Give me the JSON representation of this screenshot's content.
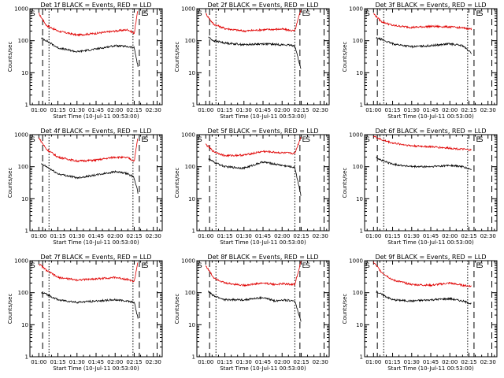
{
  "chart_data": [
    {
      "type": "line",
      "title": "Det 1f BLACK = Events, RED = LLD",
      "xlabel": "Start Time (10-Jul-11 00:53:00)",
      "ylabel": "Counts/sec",
      "yscale": "log",
      "ylim": [
        1,
        1000
      ],
      "xlim": [
        "00:53",
        "02:37"
      ],
      "x_ticks": [
        "01:00",
        "01:15",
        "01:30",
        "01:45",
        "02:00",
        "02:15",
        "02:30"
      ],
      "y_ticks": [
        "1",
        "10",
        "100",
        "1000"
      ],
      "markers": [
        {
          "label": "S",
          "time": "00:53"
        },
        {
          "label": "E",
          "time": "02:20"
        },
        {
          "label": "S",
          "time": "02:22"
        }
      ],
      "dashed_lines": [
        "01:03",
        "02:19",
        "02:33"
      ],
      "dotted_lines": [
        "01:08",
        "02:14"
      ],
      "series": [
        {
          "color": "#e00000",
          "x": [
            "01:00",
            "01:06",
            "01:15",
            "01:30",
            "01:45",
            "02:00",
            "02:10",
            "02:15",
            "02:18"
          ],
          "y": [
            700,
            300,
            200,
            150,
            170,
            200,
            220,
            170,
            1000
          ]
        },
        {
          "color": "#000000",
          "x": [
            "01:02",
            "01:06",
            "01:15",
            "01:30",
            "01:45",
            "02:00",
            "02:10",
            "02:15",
            "02:18"
          ],
          "y": [
            120,
            100,
            60,
            45,
            55,
            70,
            65,
            60,
            15
          ]
        }
      ]
    },
    {
      "type": "line",
      "title": "Det 2f BLACK = Events, RED = LLD",
      "xlabel": "Start Time (10-Jul-11 00:53:00)",
      "ylabel": "Counts/sec",
      "yscale": "log",
      "ylim": [
        1,
        1000
      ],
      "xlim": [
        "00:53",
        "02:37"
      ],
      "x_ticks": [
        "01:00",
        "01:15",
        "01:30",
        "01:45",
        "02:00",
        "02:15",
        "02:30"
      ],
      "y_ticks": [
        "1",
        "10",
        "100",
        "1000"
      ],
      "markers": [
        {
          "label": "S",
          "time": "00:53"
        },
        {
          "label": "E",
          "time": "02:15"
        },
        {
          "label": "S",
          "time": "02:18"
        }
      ],
      "dashed_lines": [
        "01:03",
        "02:14",
        "02:33"
      ],
      "dotted_lines": [
        "01:08",
        "02:10"
      ],
      "series": [
        {
          "color": "#e00000",
          "x": [
            "01:00",
            "01:06",
            "01:15",
            "01:30",
            "01:45",
            "02:00",
            "02:10",
            "02:15"
          ],
          "y": [
            700,
            330,
            240,
            200,
            220,
            230,
            200,
            1000
          ]
        },
        {
          "color": "#000000",
          "x": [
            "01:02",
            "01:06",
            "01:15",
            "01:30",
            "01:45",
            "02:00",
            "02:10",
            "02:15"
          ],
          "y": [
            130,
            100,
            85,
            75,
            80,
            75,
            70,
            12
          ]
        }
      ]
    },
    {
      "type": "line",
      "title": "Det 3f BLACK = Events, RED = LLD",
      "xlabel": "Start Time (10-Jul-11 00:53:00)",
      "ylabel": "Counts/sec",
      "yscale": "log",
      "ylim": [
        1,
        1000
      ],
      "xlim": [
        "00:53",
        "02:37"
      ],
      "x_ticks": [
        "01:00",
        "01:15",
        "01:30",
        "01:45",
        "02:00",
        "02:15",
        "02:30"
      ],
      "y_ticks": [
        "1",
        "10",
        "100",
        "1000"
      ],
      "markers": [
        {
          "label": "S",
          "time": "00:53"
        },
        {
          "label": "E",
          "time": "02:20"
        },
        {
          "label": "S",
          "time": "02:22"
        }
      ],
      "dashed_lines": [
        "01:03",
        "02:19",
        "02:33"
      ],
      "dotted_lines": [
        "01:08",
        "02:14"
      ],
      "series": [
        {
          "color": "#e00000",
          "x": [
            "01:00",
            "01:06",
            "01:15",
            "01:30",
            "01:45",
            "02:00",
            "02:10",
            "02:17"
          ],
          "y": [
            700,
            400,
            300,
            260,
            280,
            270,
            250,
            230
          ]
        },
        {
          "color": "#000000",
          "x": [
            "01:02",
            "01:06",
            "01:15",
            "01:30",
            "01:45",
            "02:00",
            "02:10",
            "02:17"
          ],
          "y": [
            120,
            110,
            80,
            65,
            70,
            80,
            70,
            40
          ]
        }
      ]
    },
    {
      "type": "line",
      "title": "Det 4f BLACK = Events, RED = LLD",
      "xlabel": "Start Time (10-Jul-11 00:53:00)",
      "ylabel": "Counts/sec",
      "yscale": "log",
      "ylim": [
        1,
        1000
      ],
      "xlim": [
        "00:53",
        "02:37"
      ],
      "x_ticks": [
        "01:00",
        "01:15",
        "01:30",
        "01:45",
        "02:00",
        "02:15",
        "02:30"
      ],
      "y_ticks": [
        "1",
        "10",
        "100",
        "1000"
      ],
      "markers": [
        {
          "label": "S",
          "time": "00:53"
        },
        {
          "label": "E",
          "time": "02:20"
        },
        {
          "label": "S",
          "time": "02:22"
        }
      ],
      "dashed_lines": [
        "01:03",
        "02:19",
        "02:33"
      ],
      "dotted_lines": [
        "01:08",
        "02:14"
      ],
      "series": [
        {
          "color": "#e00000",
          "x": [
            "01:00",
            "01:06",
            "01:15",
            "01:30",
            "01:45",
            "02:00",
            "02:10",
            "02:15",
            "02:18"
          ],
          "y": [
            800,
            350,
            200,
            150,
            160,
            200,
            190,
            150,
            900
          ]
        },
        {
          "color": "#000000",
          "x": [
            "01:02",
            "01:06",
            "01:15",
            "01:30",
            "01:45",
            "02:00",
            "02:10",
            "02:15",
            "02:18"
          ],
          "y": [
            120,
            100,
            60,
            45,
            55,
            70,
            60,
            45,
            15
          ]
        }
      ]
    },
    {
      "type": "line",
      "title": "Det 5f BLACK = Events, RED = LLD",
      "xlabel": "Start Time (10-Jul-11 00:53:00)",
      "ylabel": "Counts/sec",
      "yscale": "log",
      "ylim": [
        1,
        1000
      ],
      "xlim": [
        "00:53",
        "02:37"
      ],
      "x_ticks": [
        "01:00",
        "01:15",
        "01:30",
        "01:45",
        "02:00",
        "02:15",
        "02:30"
      ],
      "y_ticks": [
        "1",
        "10",
        "100",
        "1000"
      ],
      "markers": [
        {
          "label": "S",
          "time": "00:53"
        },
        {
          "label": "E",
          "time": "02:15"
        },
        {
          "label": "S",
          "time": "02:18"
        }
      ],
      "dashed_lines": [
        "01:03",
        "02:14",
        "02:33"
      ],
      "dotted_lines": [
        "01:08",
        "02:10"
      ],
      "series": [
        {
          "color": "#e00000",
          "x": [
            "01:00",
            "01:06",
            "01:15",
            "01:30",
            "01:45",
            "02:00",
            "02:10",
            "02:15"
          ],
          "y": [
            500,
            300,
            220,
            230,
            300,
            270,
            260,
            900
          ]
        },
        {
          "color": "#000000",
          "x": [
            "01:02",
            "01:06",
            "01:15",
            "01:30",
            "01:45",
            "02:00",
            "02:10",
            "02:15"
          ],
          "y": [
            180,
            140,
            100,
            90,
            140,
            110,
            95,
            12
          ]
        }
      ]
    },
    {
      "type": "line",
      "title": "Det 6f BLACK = Events, RED = LLD",
      "xlabel": "Start Time (10-Jul-11 00:53:00)",
      "ylabel": "Counts/sec",
      "yscale": "log",
      "ylim": [
        1,
        1000
      ],
      "xlim": [
        "00:53",
        "02:37"
      ],
      "x_ticks": [
        "01:00",
        "01:15",
        "01:30",
        "01:45",
        "02:00",
        "02:15",
        "02:30"
      ],
      "y_ticks": [
        "1",
        "10",
        "100",
        "1000"
      ],
      "markers": [
        {
          "label": "S",
          "time": "00:53"
        },
        {
          "label": "E",
          "time": "02:20"
        },
        {
          "label": "S",
          "time": "02:22"
        }
      ],
      "dashed_lines": [
        "01:03",
        "02:19",
        "02:33"
      ],
      "dotted_lines": [
        "01:08",
        "02:14"
      ],
      "series": [
        {
          "color": "#e00000",
          "x": [
            "01:00",
            "01:06",
            "01:15",
            "01:30",
            "01:45",
            "02:00",
            "02:10",
            "02:17"
          ],
          "y": [
            900,
            700,
            550,
            450,
            420,
            380,
            350,
            330
          ]
        },
        {
          "color": "#000000",
          "x": [
            "01:02",
            "01:06",
            "01:15",
            "01:30",
            "01:45",
            "02:00",
            "02:10",
            "02:17"
          ],
          "y": [
            200,
            160,
            120,
            100,
            100,
            110,
            100,
            80
          ]
        }
      ]
    },
    {
      "type": "line",
      "title": "Det 7f BLACK = Events, RED = LLD",
      "xlabel": "Start Time (10-Jul-11 00:53:00)",
      "ylabel": "Counts/sec",
      "yscale": "log",
      "ylim": [
        1,
        1000
      ],
      "xlim": [
        "00:53",
        "02:37"
      ],
      "x_ticks": [
        "01:00",
        "01:15",
        "01:30",
        "01:45",
        "02:00",
        "02:15",
        "02:30"
      ],
      "y_ticks": [
        "1",
        "10",
        "100",
        "1000"
      ],
      "markers": [
        {
          "label": "S",
          "time": "00:53"
        },
        {
          "label": "E",
          "time": "02:20"
        },
        {
          "label": "S",
          "time": "02:22"
        }
      ],
      "dashed_lines": [
        "01:03",
        "02:19",
        "02:33"
      ],
      "dotted_lines": [
        "01:08",
        "02:14"
      ],
      "series": [
        {
          "color": "#e00000",
          "x": [
            "01:00",
            "01:06",
            "01:15",
            "01:30",
            "01:45",
            "02:00",
            "02:10",
            "02:15",
            "02:18"
          ],
          "y": [
            800,
            500,
            300,
            250,
            270,
            300,
            260,
            220,
            1000
          ]
        },
        {
          "color": "#000000",
          "x": [
            "01:02",
            "01:06",
            "01:15",
            "01:30",
            "01:45",
            "02:00",
            "02:10",
            "02:15",
            "02:18"
          ],
          "y": [
            100,
            90,
            60,
            50,
            55,
            60,
            55,
            50,
            15
          ]
        }
      ]
    },
    {
      "type": "line",
      "title": "Det 8f BLACK = Events, RED = LLD",
      "xlabel": "Start Time (10-Jul-11 00:53:00)",
      "ylabel": "Counts/sec",
      "yscale": "log",
      "ylim": [
        1,
        1000
      ],
      "xlim": [
        "00:53",
        "02:37"
      ],
      "x_ticks": [
        "01:00",
        "01:15",
        "01:30",
        "01:45",
        "02:00",
        "02:15",
        "02:30"
      ],
      "y_ticks": [
        "1",
        "10",
        "100",
        "1000"
      ],
      "markers": [
        {
          "label": "S",
          "time": "00:53"
        },
        {
          "label": "E",
          "time": "02:15"
        },
        {
          "label": "S",
          "time": "02:18"
        }
      ],
      "dashed_lines": [
        "01:03",
        "02:14",
        "02:33"
      ],
      "dotted_lines": [
        "01:08",
        "02:10"
      ],
      "series": [
        {
          "color": "#e00000",
          "x": [
            "01:00",
            "01:06",
            "01:15",
            "01:30",
            "01:45",
            "01:55",
            "02:00",
            "02:10",
            "02:15"
          ],
          "y": [
            700,
            300,
            200,
            170,
            200,
            180,
            190,
            180,
            1000
          ]
        },
        {
          "color": "#000000",
          "x": [
            "01:02",
            "01:06",
            "01:15",
            "01:30",
            "01:45",
            "01:55",
            "02:00",
            "02:10",
            "02:15"
          ],
          "y": [
            110,
            80,
            60,
            60,
            70,
            55,
            60,
            55,
            12
          ]
        }
      ]
    },
    {
      "type": "line",
      "title": "Det 9f BLACK = Events, RED = LLD",
      "xlabel": "Start Time (10-Jul-11 00:53:00)",
      "ylabel": "Counts/sec",
      "yscale": "log",
      "ylim": [
        1,
        1000
      ],
      "xlim": [
        "00:53",
        "02:37"
      ],
      "x_ticks": [
        "01:00",
        "01:15",
        "01:30",
        "01:45",
        "02:00",
        "02:15",
        "02:30"
      ],
      "y_ticks": [
        "1",
        "10",
        "100",
        "1000"
      ],
      "markers": [
        {
          "label": "S",
          "time": "00:53"
        },
        {
          "label": "E",
          "time": "02:20"
        },
        {
          "label": "S",
          "time": "02:22"
        }
      ],
      "dashed_lines": [
        "01:03",
        "02:19",
        "02:33"
      ],
      "dotted_lines": [
        "01:08",
        "02:14"
      ],
      "series": [
        {
          "color": "#e00000",
          "x": [
            "01:00",
            "01:06",
            "01:15",
            "01:30",
            "01:45",
            "02:00",
            "02:10",
            "02:17"
          ],
          "y": [
            900,
            450,
            250,
            180,
            170,
            200,
            170,
            160
          ]
        },
        {
          "color": "#000000",
          "x": [
            "01:02",
            "01:06",
            "01:15",
            "01:30",
            "01:45",
            "02:00",
            "02:10",
            "02:17"
          ],
          "y": [
            110,
            90,
            60,
            55,
            60,
            65,
            55,
            45
          ]
        }
      ]
    }
  ]
}
